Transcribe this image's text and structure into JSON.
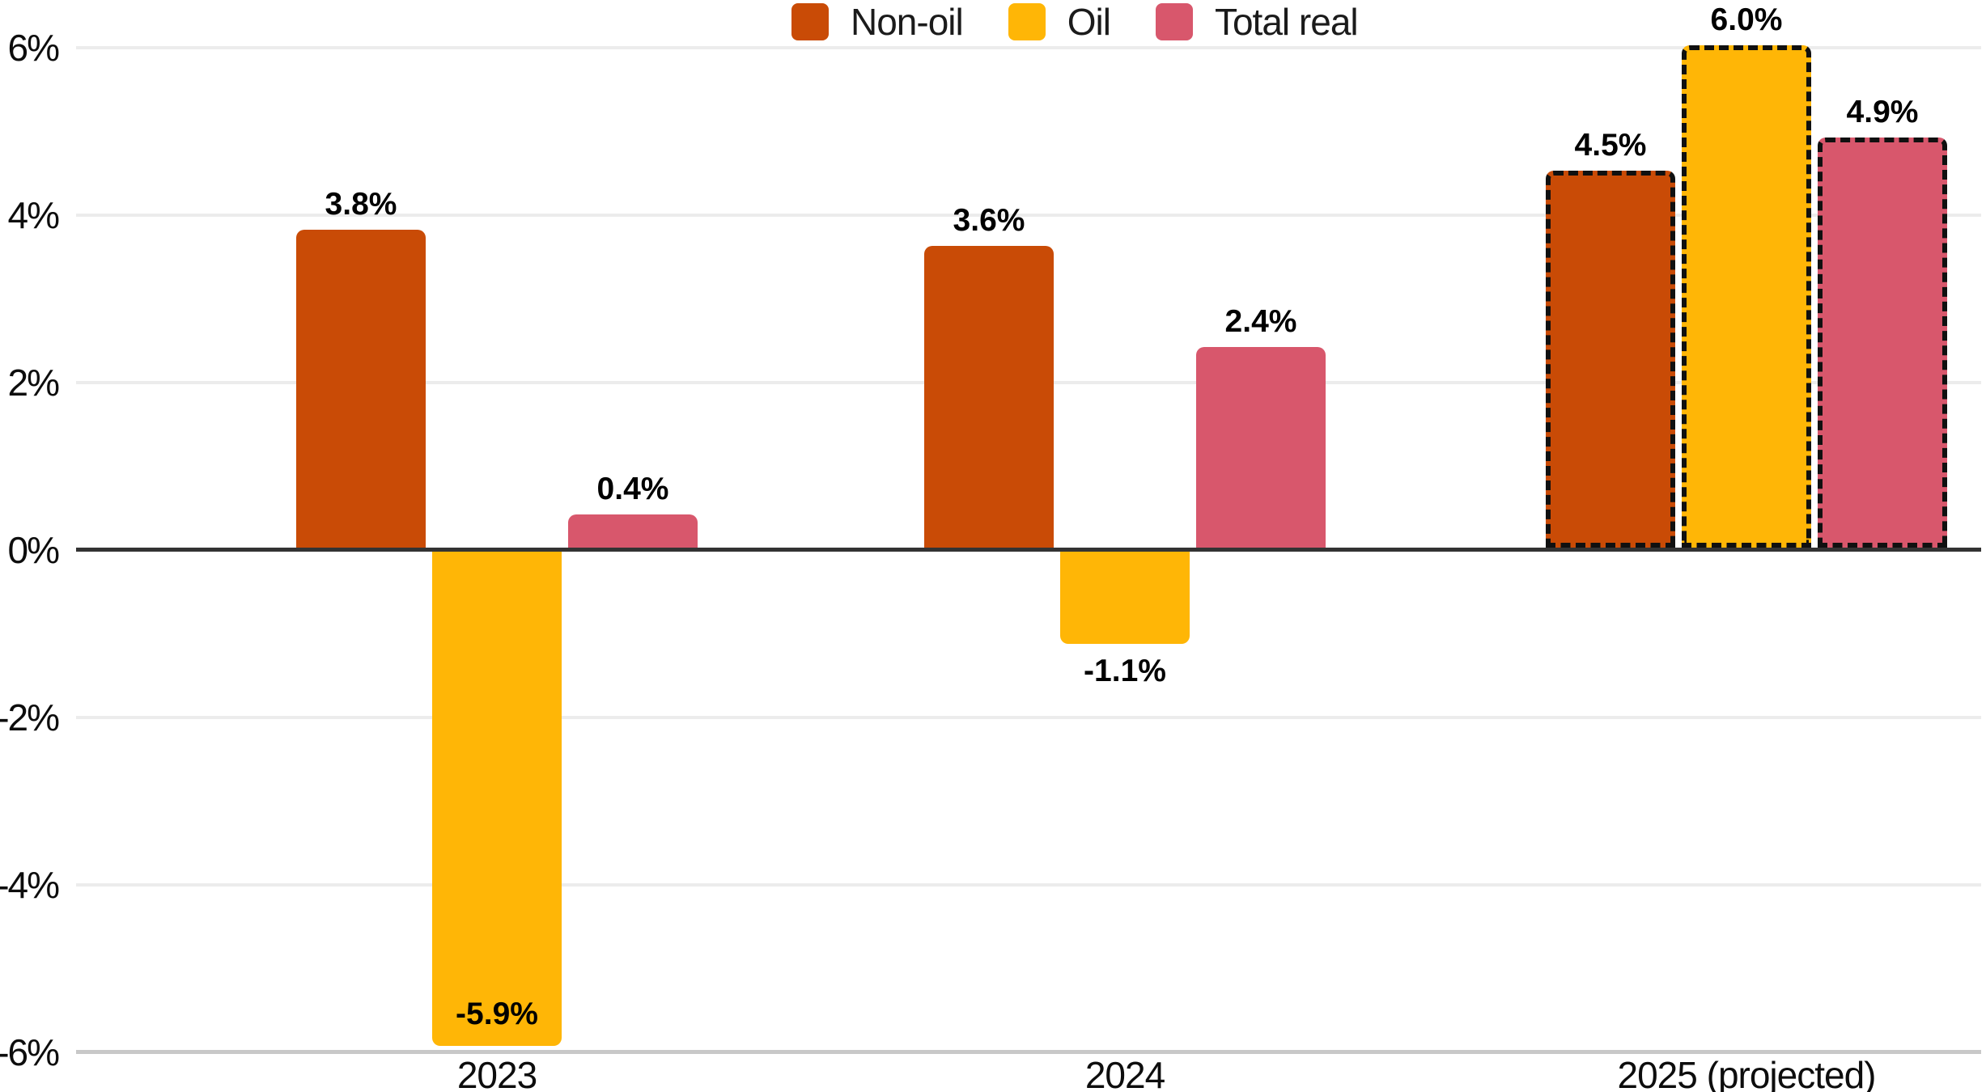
{
  "legend": {
    "items": [
      {
        "label": "Non-oil",
        "color": "#C94B06"
      },
      {
        "label": "Oil",
        "color": "#FFB606"
      },
      {
        "label": "Total real",
        "color": "#D8576C"
      }
    ]
  },
  "chart_data": {
    "type": "bar",
    "categories": [
      "2023",
      "2024",
      "2025 (projected)"
    ],
    "projected_categories": [
      false,
      false,
      true
    ],
    "series": [
      {
        "name": "Non-oil",
        "color": "#C94B06",
        "values": [
          3.8,
          3.6,
          4.5
        ],
        "labels": [
          "3.8%",
          "3.6%",
          "4.5%"
        ],
        "label_positions": [
          "above",
          "above",
          "above"
        ]
      },
      {
        "name": "Oil",
        "color": "#FFB606",
        "values": [
          -5.9,
          -1.1,
          6.0
        ],
        "labels": [
          "-5.9%",
          "-1.1%",
          "6.0%"
        ],
        "label_positions": [
          "inside-bottom",
          "below",
          "above"
        ]
      },
      {
        "name": "Total real",
        "color": "#D8576C",
        "values": [
          0.4,
          2.4,
          4.9
        ],
        "labels": [
          "0.4%",
          "2.4%",
          "4.9%"
        ],
        "label_positions": [
          "above",
          "above",
          "above"
        ]
      }
    ],
    "title": "",
    "xlabel": "",
    "ylabel": "",
    "ylim": [
      -6,
      6
    ],
    "yticks": {
      "values": [
        6,
        4,
        2,
        0,
        -2,
        -4,
        -6
      ],
      "labels": [
        "6%",
        "4%",
        "2%",
        "0%",
        "-2%",
        "-4%",
        "-6%"
      ]
    },
    "grid": "horizontal",
    "legend_position": "top-center",
    "zero_line_color": "#333333",
    "gridline_color": "#ECECEC",
    "bottom_gridline_color": "#C8C8C8",
    "projected_border_color": "#101010"
  }
}
